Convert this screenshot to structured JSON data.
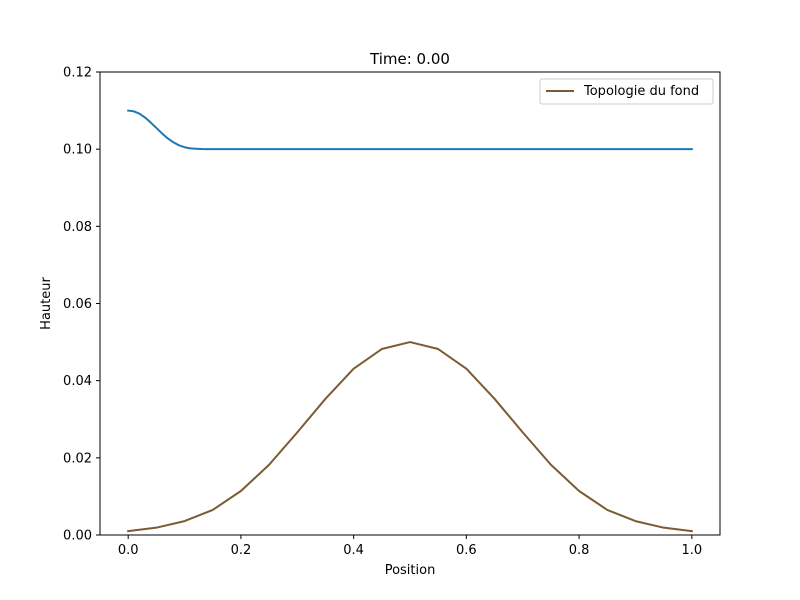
{
  "chart_data": {
    "type": "line",
    "title": "Time: 0.00",
    "xlabel": "Position",
    "ylabel": "Hauteur",
    "xlim": [
      -0.05,
      1.05
    ],
    "ylim": [
      0.0,
      0.12
    ],
    "xticks": [
      "0.0",
      "0.2",
      "0.4",
      "0.6",
      "0.8",
      "1.0"
    ],
    "yticks": [
      "0.00",
      "0.02",
      "0.04",
      "0.06",
      "0.08",
      "0.10",
      "0.12"
    ],
    "grid": false,
    "legend": {
      "placement": "top-right",
      "entries": [
        "Topologie du fond"
      ]
    },
    "series": [
      {
        "color": "#1f77b4",
        "x": [
          0.0,
          0.01,
          0.02,
          0.03,
          0.04,
          0.05,
          0.06,
          0.07,
          0.08,
          0.09,
          0.1,
          0.11,
          0.12,
          0.13,
          0.14,
          0.15,
          0.2,
          0.3,
          0.4,
          0.5,
          0.6,
          0.7,
          0.8,
          0.9,
          1.0
        ],
        "y": [
          0.11,
          0.1098,
          0.1092,
          0.1082,
          0.1069,
          0.1055,
          0.1041,
          0.1028,
          0.1018,
          0.101,
          0.1005,
          0.1002,
          0.1001,
          0.10003,
          0.1,
          0.1,
          0.1,
          0.1,
          0.1,
          0.1,
          0.1,
          0.1,
          0.1,
          0.1,
          0.1
        ]
      },
      {
        "name": "Topologie du fond",
        "color": "#7a5c33",
        "x": [
          0.0,
          0.05,
          0.1,
          0.15,
          0.2,
          0.25,
          0.3,
          0.35,
          0.4,
          0.45,
          0.5,
          0.55,
          0.6,
          0.65,
          0.7,
          0.75,
          0.8,
          0.85,
          0.9,
          0.95,
          1.0
        ],
        "y": [
          0.001,
          0.0019,
          0.0036,
          0.0065,
          0.0114,
          0.0182,
          0.0266,
          0.0353,
          0.0431,
          0.0482,
          0.05,
          0.0482,
          0.0431,
          0.0353,
          0.0266,
          0.0182,
          0.0114,
          0.0065,
          0.0036,
          0.0019,
          0.001
        ]
      }
    ]
  }
}
